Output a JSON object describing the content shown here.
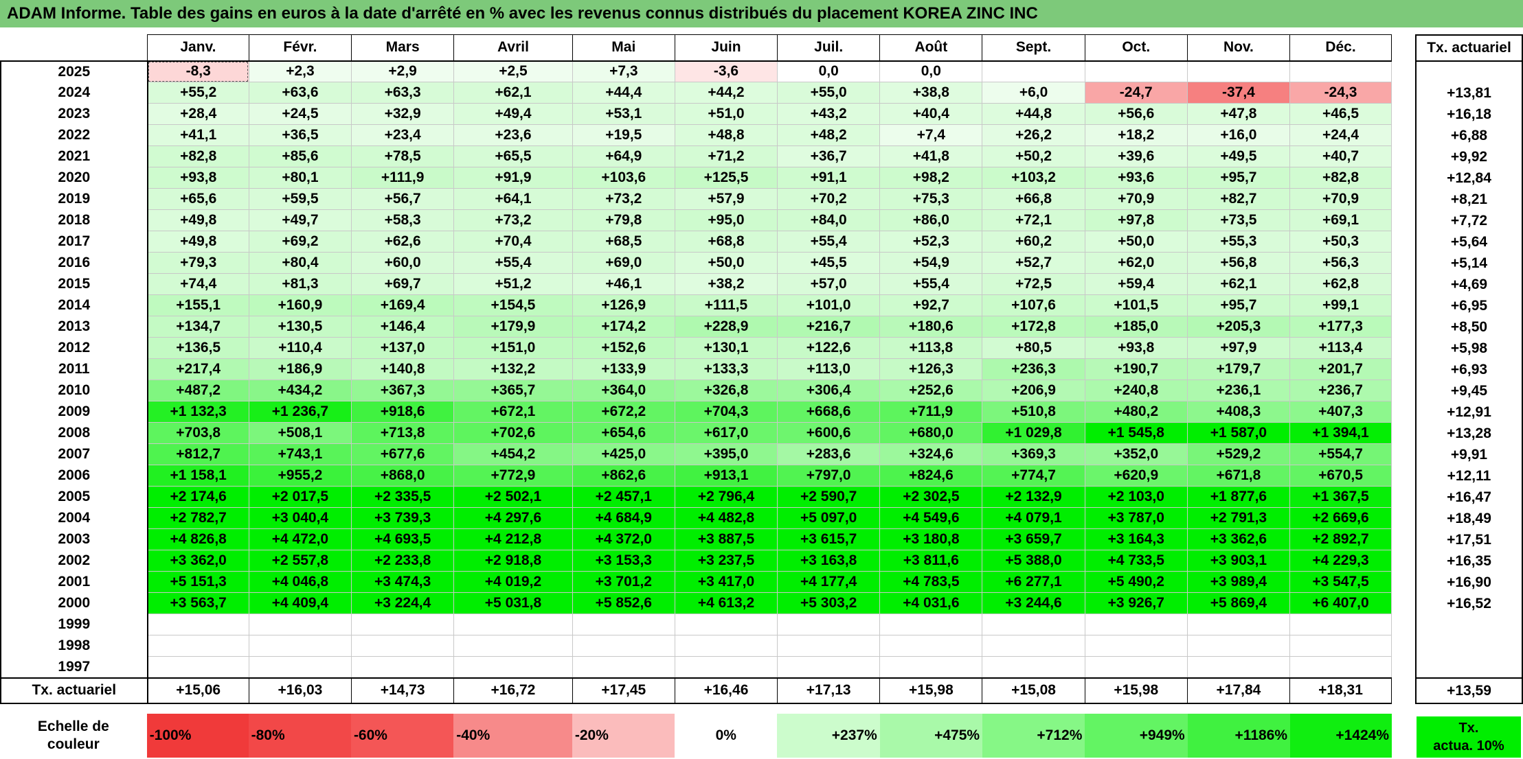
{
  "title": "ADAM Informe. Table des gains en euros à la date d'arrêté en % avec les revenus connus distribués du placement KOREA ZINC INC",
  "months": [
    "Janv.",
    "Févr.",
    "Mars",
    "Avril",
    "Mai",
    "Juin",
    "Juil.",
    "Août",
    "Sept.",
    "Oct.",
    "Nov.",
    "Déc."
  ],
  "side_header": "Tx. actuariel",
  "rows": [
    {
      "year": "2025",
      "values": [
        "-8,3",
        "+2,3",
        "+2,9",
        "+2,5",
        "+7,3",
        "-3,6",
        "0,0",
        "0,0",
        "",
        "",
        "",
        ""
      ],
      "tx": ""
    },
    {
      "year": "2024",
      "values": [
        "+55,2",
        "+63,6",
        "+63,3",
        "+62,1",
        "+44,4",
        "+44,2",
        "+55,0",
        "+38,8",
        "+6,0",
        "-24,7",
        "-37,4",
        "-24,3"
      ],
      "tx": "+13,81"
    },
    {
      "year": "2023",
      "values": [
        "+28,4",
        "+24,5",
        "+32,9",
        "+49,4",
        "+53,1",
        "+51,0",
        "+43,2",
        "+40,4",
        "+44,8",
        "+56,6",
        "+47,8",
        "+46,5"
      ],
      "tx": "+16,18"
    },
    {
      "year": "2022",
      "values": [
        "+41,1",
        "+36,5",
        "+23,4",
        "+23,6",
        "+19,5",
        "+48,8",
        "+48,2",
        "+7,4",
        "+26,2",
        "+18,2",
        "+16,0",
        "+24,4"
      ],
      "tx": "+6,88"
    },
    {
      "year": "2021",
      "values": [
        "+82,8",
        "+85,6",
        "+78,5",
        "+65,5",
        "+64,9",
        "+71,2",
        "+36,7",
        "+41,8",
        "+50,2",
        "+39,6",
        "+49,5",
        "+40,7"
      ],
      "tx": "+9,92"
    },
    {
      "year": "2020",
      "values": [
        "+93,8",
        "+80,1",
        "+111,9",
        "+91,9",
        "+103,6",
        "+125,5",
        "+91,1",
        "+98,2",
        "+103,2",
        "+93,6",
        "+95,7",
        "+82,8"
      ],
      "tx": "+12,84"
    },
    {
      "year": "2019",
      "values": [
        "+65,6",
        "+59,5",
        "+56,7",
        "+64,1",
        "+73,2",
        "+57,9",
        "+70,2",
        "+75,3",
        "+66,8",
        "+70,9",
        "+82,7",
        "+70,9"
      ],
      "tx": "+8,21"
    },
    {
      "year": "2018",
      "values": [
        "+49,8",
        "+49,7",
        "+58,3",
        "+73,2",
        "+79,8",
        "+95,0",
        "+84,0",
        "+86,0",
        "+72,1",
        "+97,8",
        "+73,5",
        "+69,1"
      ],
      "tx": "+7,72"
    },
    {
      "year": "2017",
      "values": [
        "+49,8",
        "+69,2",
        "+62,6",
        "+70,4",
        "+68,5",
        "+68,8",
        "+55,4",
        "+52,3",
        "+60,2",
        "+50,0",
        "+55,3",
        "+50,3"
      ],
      "tx": "+5,64"
    },
    {
      "year": "2016",
      "values": [
        "+79,3",
        "+80,4",
        "+60,0",
        "+55,4",
        "+69,0",
        "+50,0",
        "+45,5",
        "+54,9",
        "+52,7",
        "+62,0",
        "+56,8",
        "+56,3"
      ],
      "tx": "+5,14"
    },
    {
      "year": "2015",
      "values": [
        "+74,4",
        "+81,3",
        "+69,7",
        "+51,2",
        "+46,1",
        "+38,2",
        "+57,0",
        "+55,4",
        "+72,5",
        "+59,4",
        "+62,1",
        "+62,8"
      ],
      "tx": "+4,69"
    },
    {
      "year": "2014",
      "values": [
        "+155,1",
        "+160,9",
        "+169,4",
        "+154,5",
        "+126,9",
        "+111,5",
        "+101,0",
        "+92,7",
        "+107,6",
        "+101,5",
        "+95,7",
        "+99,1"
      ],
      "tx": "+6,95"
    },
    {
      "year": "2013",
      "values": [
        "+134,7",
        "+130,5",
        "+146,4",
        "+179,9",
        "+174,2",
        "+228,9",
        "+216,7",
        "+180,6",
        "+172,8",
        "+185,0",
        "+205,3",
        "+177,3"
      ],
      "tx": "+8,50"
    },
    {
      "year": "2012",
      "values": [
        "+136,5",
        "+110,4",
        "+137,0",
        "+151,0",
        "+152,6",
        "+130,1",
        "+122,6",
        "+113,8",
        "+80,5",
        "+93,8",
        "+97,9",
        "+113,4"
      ],
      "tx": "+5,98"
    },
    {
      "year": "2011",
      "values": [
        "+217,4",
        "+186,9",
        "+140,8",
        "+132,2",
        "+133,9",
        "+133,3",
        "+113,0",
        "+126,3",
        "+236,3",
        "+190,7",
        "+179,7",
        "+201,7"
      ],
      "tx": "+6,93"
    },
    {
      "year": "2010",
      "values": [
        "+487,2",
        "+434,2",
        "+367,3",
        "+365,7",
        "+364,0",
        "+326,8",
        "+306,4",
        "+252,6",
        "+206,9",
        "+240,8",
        "+236,1",
        "+236,7"
      ],
      "tx": "+9,45"
    },
    {
      "year": "2009",
      "values": [
        "+1 132,3",
        "+1 236,7",
        "+918,6",
        "+672,1",
        "+672,2",
        "+704,3",
        "+668,6",
        "+711,9",
        "+510,8",
        "+480,2",
        "+408,3",
        "+407,3"
      ],
      "tx": "+12,91"
    },
    {
      "year": "2008",
      "values": [
        "+703,8",
        "+508,1",
        "+713,8",
        "+702,6",
        "+654,6",
        "+617,0",
        "+600,6",
        "+680,0",
        "+1 029,8",
        "+1 545,8",
        "+1 587,0",
        "+1 394,1"
      ],
      "tx": "+13,28"
    },
    {
      "year": "2007",
      "values": [
        "+812,7",
        "+743,1",
        "+677,6",
        "+454,2",
        "+425,0",
        "+395,0",
        "+283,6",
        "+324,6",
        "+369,3",
        "+352,0",
        "+529,2",
        "+554,7"
      ],
      "tx": "+9,91"
    },
    {
      "year": "2006",
      "values": [
        "+1 158,1",
        "+955,2",
        "+868,0",
        "+772,9",
        "+862,6",
        "+913,1",
        "+797,0",
        "+824,6",
        "+774,7",
        "+620,9",
        "+671,8",
        "+670,5"
      ],
      "tx": "+12,11"
    },
    {
      "year": "2005",
      "values": [
        "+2 174,6",
        "+2 017,5",
        "+2 335,5",
        "+2 502,1",
        "+2 457,1",
        "+2 796,4",
        "+2 590,7",
        "+2 302,5",
        "+2 132,9",
        "+2 103,0",
        "+1 877,6",
        "+1 367,5"
      ],
      "tx": "+16,47"
    },
    {
      "year": "2004",
      "values": [
        "+2 782,7",
        "+3 040,4",
        "+3 739,3",
        "+4 297,6",
        "+4 684,9",
        "+4 482,8",
        "+5 097,0",
        "+4 549,6",
        "+4 079,1",
        "+3 787,0",
        "+2 791,3",
        "+2 669,6"
      ],
      "tx": "+18,49"
    },
    {
      "year": "2003",
      "values": [
        "+4 826,8",
        "+4 472,0",
        "+4 693,5",
        "+4 212,8",
        "+4 372,0",
        "+3 887,5",
        "+3 615,7",
        "+3 180,8",
        "+3 659,7",
        "+3 164,3",
        "+3 362,6",
        "+2 892,7"
      ],
      "tx": "+17,51"
    },
    {
      "year": "2002",
      "values": [
        "+3 362,0",
        "+2 557,8",
        "+2 233,8",
        "+2 918,8",
        "+3 153,3",
        "+3 237,5",
        "+3 163,8",
        "+3 811,6",
        "+5 388,0",
        "+4 733,5",
        "+3 903,1",
        "+4 229,3"
      ],
      "tx": "+16,35"
    },
    {
      "year": "2001",
      "values": [
        "+5 151,3",
        "+4 046,8",
        "+3 474,3",
        "+4 019,2",
        "+3 701,2",
        "+3 417,0",
        "+4 177,4",
        "+4 783,5",
        "+6 277,1",
        "+5 490,2",
        "+3 989,4",
        "+3 547,5"
      ],
      "tx": "+16,90"
    },
    {
      "year": "2000",
      "values": [
        "+3 563,7",
        "+4 409,4",
        "+3 224,4",
        "+5 031,8",
        "+5 852,6",
        "+4 613,2",
        "+5 303,2",
        "+4 031,6",
        "+3 244,6",
        "+3 926,7",
        "+5 869,4",
        "+6 407,0"
      ],
      "tx": "+16,52"
    },
    {
      "year": "1999",
      "values": [
        "",
        "",
        "",
        "",
        "",
        "",
        "",
        "",
        "",
        "",
        "",
        ""
      ],
      "tx": ""
    },
    {
      "year": "1998",
      "values": [
        "",
        "",
        "",
        "",
        "",
        "",
        "",
        "",
        "",
        "",
        "",
        ""
      ],
      "tx": ""
    },
    {
      "year": "1997",
      "values": [
        "",
        "",
        "",
        "",
        "",
        "",
        "",
        "",
        "",
        "",
        "",
        ""
      ],
      "tx": ""
    }
  ],
  "footer": {
    "label": "Tx. actuariel",
    "values": [
      "+15,06",
      "+16,03",
      "+14,73",
      "+16,72",
      "+17,45",
      "+16,46",
      "+17,13",
      "+15,98",
      "+15,08",
      "+15,98",
      "+17,84",
      "+18,31"
    ],
    "tx": "+13,59"
  },
  "scale": {
    "label_line1": "Echelle de",
    "label_line2": "couleur",
    "steps": [
      {
        "text": "-100%",
        "color": "#f03a3a",
        "kind": "neg"
      },
      {
        "text": "-80%",
        "color": "#f24848",
        "kind": "neg"
      },
      {
        "text": "-60%",
        "color": "#f45656",
        "kind": "neg"
      },
      {
        "text": "-40%",
        "color": "#f78a8a",
        "kind": "neg"
      },
      {
        "text": "-20%",
        "color": "#fbbcbc",
        "kind": "neg"
      },
      {
        "text": "0%",
        "color": "#ffffff",
        "kind": "zero"
      },
      {
        "text": "+237%",
        "color": "#ccfccc",
        "kind": "pos"
      },
      {
        "text": "+475%",
        "color": "#a9f9a9",
        "kind": "pos"
      },
      {
        "text": "+712%",
        "color": "#86f786",
        "kind": "pos"
      },
      {
        "text": "+949%",
        "color": "#63f463",
        "kind": "pos"
      },
      {
        "text": "+1186%",
        "color": "#40f140",
        "kind": "pos"
      },
      {
        "text": "+1424%",
        "color": "#10ee10",
        "kind": "pos"
      }
    ],
    "side_line1": "Tx.",
    "side_line2": "actua. 10%",
    "side_color": "#00ee00"
  },
  "colors": {
    "title_bg": "#7dc97a",
    "max_green": "#00ee00",
    "max_red": "#f03a3a"
  }
}
